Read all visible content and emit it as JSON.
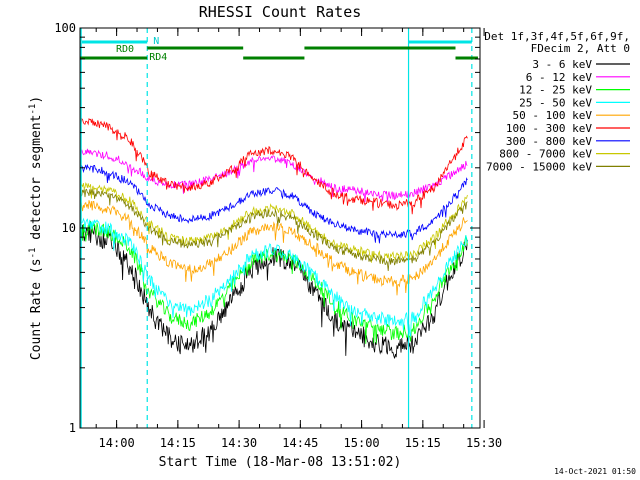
{
  "chart_data": {
    "type": "line",
    "title": "RHESSI Count Rates",
    "xlabel": "Start Time (18-Mar-08 13:51:02)",
    "ylabel_main": "Count Rate (s",
    "ylabel_sup1": "-1",
    "ylabel_mid": " detector segment",
    "ylabel_sup2": "-1",
    "ylabel_end": ")",
    "y_scale": "log",
    "xlim": [
      "13:51:02",
      "15:29:00"
    ],
    "ylim": [
      1,
      100
    ],
    "x_ticks": [
      "14:00",
      "14:15",
      "14:30",
      "14:45",
      "15:00",
      "15:15",
      "15:30"
    ],
    "y_ticks": [
      "1",
      "10",
      "100"
    ],
    "grid": false,
    "legend_header": [
      "Det 1f,3f,4f,5f,6f,9f,",
      "FDecim 2, Att 0"
    ],
    "legend_position": "right",
    "attenuator_labels": {
      "rd0": "RD0",
      "rd4": "RD4",
      "n": "N"
    },
    "series": [
      {
        "name": "3 - 6 keV",
        "color": "#000000",
        "times": [
          "13:53",
          "13:58",
          "14:03",
          "14:08",
          "14:13",
          "14:18",
          "14:23",
          "14:28",
          "14:33",
          "14:38",
          "14:43",
          "14:48",
          "14:53",
          "14:58",
          "15:03",
          "15:08",
          "15:13",
          "15:18",
          "15:23",
          "15:28"
        ],
        "values": [
          9.5,
          8.6,
          6.5,
          3.8,
          2.8,
          2.6,
          3.0,
          4.2,
          6.2,
          7.3,
          6.8,
          5.0,
          3.5,
          3.0,
          2.7,
          2.5,
          2.6,
          3.8,
          6.5,
          9.5
        ]
      },
      {
        "name": "6 - 12 keV",
        "color": "#ff00ff",
        "times": [
          "13:53",
          "13:58",
          "14:03",
          "14:08",
          "14:13",
          "14:18",
          "14:23",
          "14:28",
          "14:33",
          "14:38",
          "14:43",
          "14:48",
          "14:53",
          "14:58",
          "15:03",
          "15:08",
          "15:13",
          "15:18",
          "15:23",
          "15:28"
        ],
        "values": [
          24.0,
          23.0,
          21.0,
          17.5,
          16.5,
          16.5,
          17.5,
          19.0,
          21.5,
          22.5,
          21.0,
          18.0,
          16.0,
          15.5,
          15.0,
          14.5,
          15.0,
          16.5,
          19.0,
          22.5
        ]
      },
      {
        "name": "12 - 25 keV",
        "color": "#00ff00",
        "times": [
          "13:53",
          "13:58",
          "14:03",
          "14:08",
          "14:13",
          "14:18",
          "14:23",
          "14:28",
          "14:33",
          "14:38",
          "14:43",
          "14:48",
          "14:53",
          "14:58",
          "15:03",
          "15:08",
          "15:13",
          "15:18",
          "15:23",
          "15:28"
        ],
        "values": [
          10.0,
          9.6,
          8.0,
          4.8,
          3.6,
          3.3,
          3.8,
          5.0,
          6.8,
          7.5,
          7.0,
          5.6,
          4.2,
          3.5,
          3.2,
          3.0,
          3.1,
          4.5,
          7.0,
          10.0
        ]
      },
      {
        "name": "25 - 50 keV",
        "color": "#00ffff",
        "times": [
          "13:53",
          "13:58",
          "14:03",
          "14:08",
          "14:13",
          "14:18",
          "14:23",
          "14:28",
          "14:33",
          "14:38",
          "14:43",
          "14:48",
          "14:53",
          "14:58",
          "15:03",
          "15:08",
          "15:13",
          "15:18",
          "15:23",
          "15:28"
        ],
        "values": [
          10.5,
          10.0,
          8.5,
          5.5,
          4.2,
          3.9,
          4.4,
          5.6,
          7.2,
          7.8,
          7.3,
          5.9,
          4.6,
          3.9,
          3.6,
          3.4,
          3.6,
          5.0,
          7.4,
          10.2
        ]
      },
      {
        "name": "50 - 100 keV",
        "color": "#ffa500",
        "times": [
          "13:53",
          "13:58",
          "14:03",
          "14:08",
          "14:13",
          "14:18",
          "14:23",
          "14:28",
          "14:33",
          "14:38",
          "14:43",
          "14:48",
          "14:53",
          "14:58",
          "15:03",
          "15:08",
          "15:13",
          "15:18",
          "15:23",
          "15:28"
        ],
        "values": [
          13.0,
          12.5,
          11.0,
          8.0,
          6.6,
          6.2,
          6.6,
          7.8,
          9.6,
          10.2,
          9.6,
          8.2,
          6.8,
          6.0,
          5.6,
          5.4,
          5.6,
          7.0,
          9.5,
          12.5
        ]
      },
      {
        "name": "100 - 300 keV",
        "color": "#ff0000",
        "times": [
          "13:53",
          "13:58",
          "14:03",
          "14:08",
          "14:13",
          "14:18",
          "14:23",
          "14:28",
          "14:33",
          "14:38",
          "14:43",
          "14:48",
          "14:53",
          "14:58",
          "15:03",
          "15:08",
          "15:13",
          "15:18",
          "15:23",
          "15:28"
        ],
        "values": [
          34.0,
          32.0,
          28.0,
          19.0,
          16.5,
          16.0,
          17.0,
          19.5,
          23.5,
          24.5,
          22.5,
          17.5,
          15.0,
          14.0,
          13.5,
          13.0,
          13.5,
          16.0,
          23.0,
          32.0
        ]
      },
      {
        "name": "300 - 800 keV",
        "color": "#0000ff",
        "times": [
          "13:53",
          "13:58",
          "14:03",
          "14:08",
          "14:13",
          "14:18",
          "14:23",
          "14:28",
          "14:33",
          "14:38",
          "14:43",
          "14:48",
          "14:53",
          "14:58",
          "15:03",
          "15:08",
          "15:13",
          "15:18",
          "15:23",
          "15:28"
        ],
        "values": [
          20.0,
          19.0,
          17.0,
          13.0,
          11.5,
          11.0,
          11.5,
          12.8,
          14.8,
          15.5,
          14.5,
          12.0,
          10.5,
          9.8,
          9.4,
          9.2,
          9.4,
          11.0,
          14.5,
          19.0
        ]
      },
      {
        "name": "800 - 7000 keV",
        "color": "#c8c800",
        "times": [
          "13:53",
          "13:58",
          "14:03",
          "14:08",
          "14:13",
          "14:18",
          "14:23",
          "14:28",
          "14:33",
          "14:38",
          "14:43",
          "14:48",
          "14:53",
          "14:58",
          "15:03",
          "15:08",
          "15:13",
          "15:18",
          "15:23",
          "15:28"
        ],
        "values": [
          16.0,
          15.5,
          13.8,
          10.5,
          9.0,
          8.6,
          9.0,
          10.2,
          12.0,
          12.6,
          11.8,
          9.8,
          8.4,
          7.8,
          7.4,
          7.2,
          7.4,
          9.0,
          12.0,
          15.5
        ]
      },
      {
        "name": "7000 - 15000 keV",
        "color": "#808000",
        "times": [
          "13:53",
          "13:58",
          "14:03",
          "14:08",
          "14:13",
          "14:18",
          "14:23",
          "14:28",
          "14:33",
          "14:38",
          "14:43",
          "14:48",
          "14:53",
          "14:58",
          "15:03",
          "15:08",
          "15:13",
          "15:18",
          "15:23",
          "15:28"
        ],
        "values": [
          15.0,
          14.5,
          13.0,
          10.0,
          8.6,
          8.2,
          8.6,
          9.8,
          11.4,
          12.0,
          11.2,
          9.4,
          8.0,
          7.4,
          7.0,
          6.8,
          7.0,
          8.6,
          11.4,
          14.6
        ]
      }
    ],
    "night_markers": [
      "14:07:30",
      "15:11:30",
      "15:27:00"
    ],
    "footer_stamp": "14-Oct-2021 01:50"
  }
}
